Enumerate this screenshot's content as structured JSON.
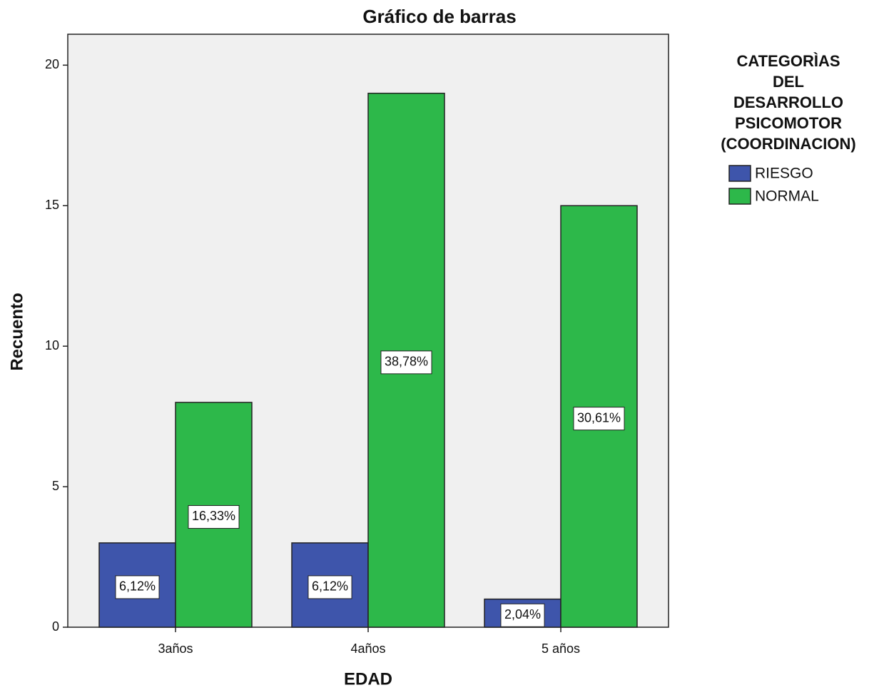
{
  "chart_data": {
    "type": "bar",
    "title": "Gráfico de barras",
    "x_label": "EDAD",
    "y_label": "Recuento",
    "categories": [
      "3años",
      "4años",
      "5 años"
    ],
    "series": [
      {
        "name": "RIESGO",
        "color": "#3e55ab",
        "values": [
          3,
          3,
          1
        ],
        "percent_labels": [
          "6,12%",
          "6,12%",
          "2,04%"
        ]
      },
      {
        "name": "NORMAL",
        "color": "#2db84a",
        "values": [
          8,
          19,
          15
        ],
        "percent_labels": [
          "16,33%",
          "38,78%",
          "30,61%"
        ]
      }
    ],
    "legend_title": [
      "CATEGORÌAS",
      "DEL",
      "DESARROLLO",
      "PSICOMOTOR",
      "(COORDINACION)"
    ],
    "legend": "right",
    "ylim": [
      0,
      21.1
    ],
    "yticks": [
      0,
      5,
      10,
      15,
      20
    ]
  }
}
